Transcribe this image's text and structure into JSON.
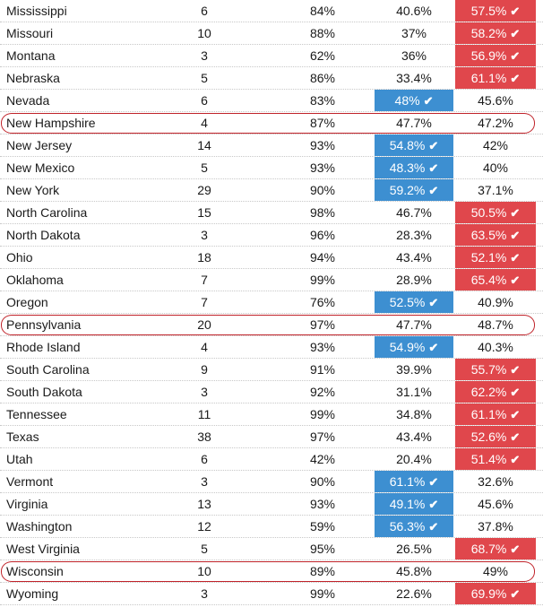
{
  "colors": {
    "dem_win": "#3d8fd1",
    "rep_win": "#e0474c",
    "highlight": "#c0232a"
  },
  "rows": [
    {
      "state": "Mississippi",
      "votes": "6",
      "reporting": "84%",
      "dem": "40.6%",
      "rep": "57.5%",
      "winner": "rep"
    },
    {
      "state": "Missouri",
      "votes": "10",
      "reporting": "88%",
      "dem": "37%",
      "rep": "58.2%",
      "winner": "rep"
    },
    {
      "state": "Montana",
      "votes": "3",
      "reporting": "62%",
      "dem": "36%",
      "rep": "56.9%",
      "winner": "rep"
    },
    {
      "state": "Nebraska",
      "votes": "5",
      "reporting": "86%",
      "dem": "33.4%",
      "rep": "61.1%",
      "winner": "rep"
    },
    {
      "state": "Nevada",
      "votes": "6",
      "reporting": "83%",
      "dem": "48%",
      "rep": "45.6%",
      "winner": "dem"
    },
    {
      "state": "New Hampshire",
      "votes": "4",
      "reporting": "87%",
      "dem": "47.7%",
      "rep": "47.2%",
      "winner": "none",
      "highlighted": true
    },
    {
      "state": "New Jersey",
      "votes": "14",
      "reporting": "93%",
      "dem": "54.8%",
      "rep": "42%",
      "winner": "dem"
    },
    {
      "state": "New Mexico",
      "votes": "5",
      "reporting": "93%",
      "dem": "48.3%",
      "rep": "40%",
      "winner": "dem"
    },
    {
      "state": "New York",
      "votes": "29",
      "reporting": "90%",
      "dem": "59.2%",
      "rep": "37.1%",
      "winner": "dem"
    },
    {
      "state": "North Carolina",
      "votes": "15",
      "reporting": "98%",
      "dem": "46.7%",
      "rep": "50.5%",
      "winner": "rep"
    },
    {
      "state": "North Dakota",
      "votes": "3",
      "reporting": "96%",
      "dem": "28.3%",
      "rep": "63.5%",
      "winner": "rep"
    },
    {
      "state": "Ohio",
      "votes": "18",
      "reporting": "94%",
      "dem": "43.4%",
      "rep": "52.1%",
      "winner": "rep"
    },
    {
      "state": "Oklahoma",
      "votes": "7",
      "reporting": "99%",
      "dem": "28.9%",
      "rep": "65.4%",
      "winner": "rep"
    },
    {
      "state": "Oregon",
      "votes": "7",
      "reporting": "76%",
      "dem": "52.5%",
      "rep": "40.9%",
      "winner": "dem"
    },
    {
      "state": "Pennsylvania",
      "votes": "20",
      "reporting": "97%",
      "dem": "47.7%",
      "rep": "48.7%",
      "winner": "none",
      "highlighted": true
    },
    {
      "state": "Rhode Island",
      "votes": "4",
      "reporting": "93%",
      "dem": "54.9%",
      "rep": "40.3%",
      "winner": "dem"
    },
    {
      "state": "South Carolina",
      "votes": "9",
      "reporting": "91%",
      "dem": "39.9%",
      "rep": "55.7%",
      "winner": "rep"
    },
    {
      "state": "South Dakota",
      "votes": "3",
      "reporting": "92%",
      "dem": "31.1%",
      "rep": "62.2%",
      "winner": "rep"
    },
    {
      "state": "Tennessee",
      "votes": "11",
      "reporting": "99%",
      "dem": "34.8%",
      "rep": "61.1%",
      "winner": "rep"
    },
    {
      "state": "Texas",
      "votes": "38",
      "reporting": "97%",
      "dem": "43.4%",
      "rep": "52.6%",
      "winner": "rep"
    },
    {
      "state": "Utah",
      "votes": "6",
      "reporting": "42%",
      "dem": "20.4%",
      "rep": "51.4%",
      "winner": "rep"
    },
    {
      "state": "Vermont",
      "votes": "3",
      "reporting": "90%",
      "dem": "61.1%",
      "rep": "32.6%",
      "winner": "dem"
    },
    {
      "state": "Virginia",
      "votes": "13",
      "reporting": "93%",
      "dem": "49.1%",
      "rep": "45.6%",
      "winner": "dem"
    },
    {
      "state": "Washington",
      "votes": "12",
      "reporting": "59%",
      "dem": "56.3%",
      "rep": "37.8%",
      "winner": "dem"
    },
    {
      "state": "West Virginia",
      "votes": "5",
      "reporting": "95%",
      "dem": "26.5%",
      "rep": "68.7%",
      "winner": "rep"
    },
    {
      "state": "Wisconsin",
      "votes": "10",
      "reporting": "89%",
      "dem": "45.8%",
      "rep": "49%",
      "winner": "none",
      "highlighted": true
    },
    {
      "state": "Wyoming",
      "votes": "3",
      "reporting": "99%",
      "dem": "22.6%",
      "rep": "69.9%",
      "winner": "rep"
    }
  ]
}
